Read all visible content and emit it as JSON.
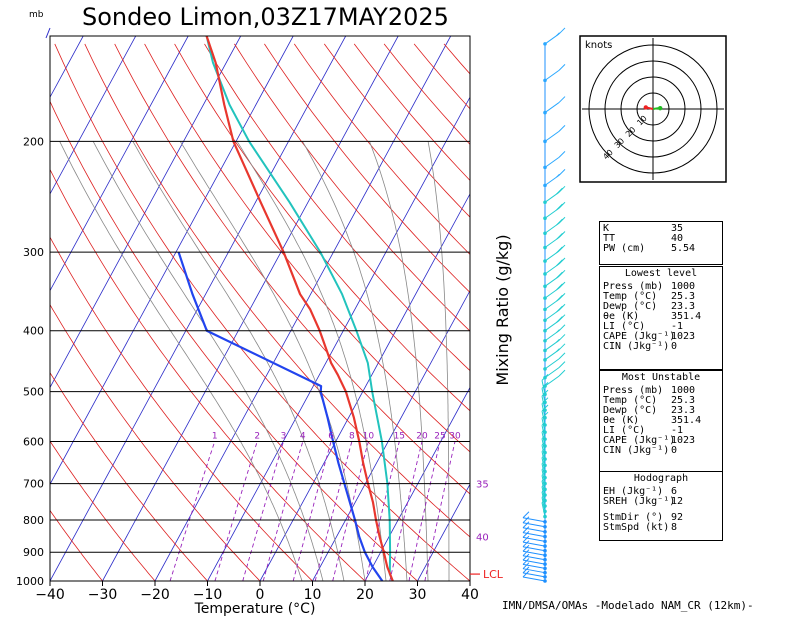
{
  "title": "Sondeo Limon,03Z17MAY2025",
  "pressure_unit": "mb",
  "xlabel": "Temperature (°C)",
  "mixing_ratio_label": "Mixing Ratio (g/kg)",
  "credit": "IMN/DMSA/OMAs -Modelado NAM_CR (12km)-",
  "hodograph": {
    "unit_label": "knots",
    "ring_labels": [
      "10",
      "20",
      "30",
      "40"
    ],
    "trace": [
      [
        0.0,
        0.0
      ],
      [
        3.0,
        0.5
      ],
      [
        4.5,
        0.5
      ],
      [
        -4.5,
        1.0
      ]
    ]
  },
  "indices_box": {
    "rows": [
      {
        "k": "K",
        "v": "35"
      },
      {
        "k": "TT",
        "v": "40"
      },
      {
        "k": "PW (cm)",
        "v": "5.54"
      }
    ]
  },
  "lowest_level": {
    "header": "Lowest level",
    "rows": [
      {
        "k": "Press (mb)",
        "v": "1000"
      },
      {
        "k": "Temp (°C)",
        "v": "25.3"
      },
      {
        "k": "Dewp (°C)",
        "v": "23.3"
      },
      {
        "k": "θe (K)",
        "v": "351.4"
      },
      {
        "k": "LI (°C)",
        "v": "-1"
      },
      {
        "k": "CAPE (Jkg⁻¹)",
        "v": "1023"
      },
      {
        "k": "CIN (Jkg⁻¹)",
        "v": "0"
      }
    ]
  },
  "most_unstable": {
    "header": "Most Unstable",
    "rows": [
      {
        "k": "Press (mb)",
        "v": "1000"
      },
      {
        "k": "Temp (°C)",
        "v": "25.3"
      },
      {
        "k": "Dewp (°C)",
        "v": "23.3"
      },
      {
        "k": "θe (K)",
        "v": "351.4"
      },
      {
        "k": "LI (°C)",
        "v": "-1"
      },
      {
        "k": "CAPE (Jkg⁻¹)",
        "v": "1023"
      },
      {
        "k": "CIN (Jkg⁻¹)",
        "v": "0"
      }
    ]
  },
  "hodo_box": {
    "header": "Hodograph",
    "rows": [
      {
        "k": "EH (Jkg⁻¹)",
        "v": "6"
      },
      {
        "k": "SREH (Jkg⁻¹)",
        "v": "12"
      }
    ],
    "rows2": [
      {
        "k": "StmDir (°)",
        "v": "92"
      },
      {
        "k": "StmSpd (kt)",
        "v": "8"
      }
    ]
  },
  "chart_data": {
    "type": "skew-t",
    "title": "Sondeo Limon,03Z17MAY2025",
    "xlabel": "Temperature (°C)",
    "x_ticks": [
      -40,
      -30,
      -20,
      -10,
      0,
      10,
      20,
      30,
      40
    ],
    "p_ticks": [
      1000,
      900,
      800,
      700,
      600,
      500,
      400,
      300,
      200
    ],
    "p_range": [
      1000,
      136
    ],
    "t_range": [
      -40,
      40
    ],
    "skew_deg_per_decade": 65,
    "mixing_ratio_lines": [
      1,
      2,
      3,
      4,
      6,
      8,
      10,
      15,
      20,
      25,
      30
    ],
    "side_labels": [
      {
        "text": "35",
        "p": 700
      },
      {
        "text": "40",
        "p": 850
      },
      {
        "text": "LCL",
        "p": 975
      }
    ],
    "temperature": [
      [
        1000,
        25.3
      ],
      [
        950,
        22.8
      ],
      [
        900,
        20.6
      ],
      [
        850,
        18.2
      ],
      [
        800,
        15.8
      ],
      [
        750,
        13.4
      ],
      [
        700,
        10.5
      ],
      [
        650,
        7.5
      ],
      [
        600,
        4.5
      ],
      [
        550,
        1.0
      ],
      [
        500,
        -3.2
      ],
      [
        470,
        -6.5
      ],
      [
        450,
        -9.0
      ],
      [
        400,
        -14.5
      ],
      [
        370,
        -18.5
      ],
      [
        350,
        -22.0
      ],
      [
        300,
        -29.5
      ],
      [
        250,
        -39.0
      ],
      [
        200,
        -50.5
      ],
      [
        175,
        -56.0
      ],
      [
        150,
        -62.0
      ],
      [
        136,
        -66.5
      ]
    ],
    "dewpoint": [
      [
        1000,
        23.3
      ],
      [
        950,
        20.0
      ],
      [
        900,
        17.0
      ],
      [
        850,
        14.3
      ],
      [
        800,
        11.8
      ],
      [
        750,
        9.0
      ],
      [
        700,
        6.0
      ],
      [
        650,
        2.8
      ],
      [
        600,
        -0.5
      ],
      [
        550,
        -4.0
      ],
      [
        500,
        -8.0
      ],
      [
        490,
        -8.5
      ],
      [
        400,
        -36.0
      ],
      [
        350,
        -42.5
      ],
      [
        300,
        -49.5
      ]
    ],
    "parcel": [
      [
        1000,
        25.3
      ],
      [
        975,
        24.0
      ],
      [
        900,
        21.8
      ],
      [
        800,
        18.4
      ],
      [
        700,
        14.2
      ],
      [
        600,
        8.8
      ],
      [
        500,
        1.8
      ],
      [
        450,
        -2.0
      ],
      [
        400,
        -7.5
      ],
      [
        350,
        -14.0
      ],
      [
        300,
        -22.5
      ],
      [
        250,
        -33.5
      ],
      [
        200,
        -47.5
      ],
      [
        175,
        -55.0
      ],
      [
        150,
        -62.5
      ],
      [
        136,
        -66.5
      ]
    ],
    "wind_levels": [
      {
        "p": 1000,
        "spd": 10
      },
      {
        "p": 985,
        "spd": 10
      },
      {
        "p": 970,
        "spd": 10
      },
      {
        "p": 955,
        "spd": 10
      },
      {
        "p": 940,
        "spd": 10
      },
      {
        "p": 925,
        "spd": 10
      },
      {
        "p": 910,
        "spd": 10
      },
      {
        "p": 895,
        "spd": 10
      },
      {
        "p": 880,
        "spd": 10
      },
      {
        "p": 865,
        "spd": 10
      },
      {
        "p": 850,
        "spd": 10
      },
      {
        "p": 835,
        "spd": 10
      },
      {
        "p": 820,
        "spd": 10
      },
      {
        "p": 805,
        "spd": 10
      },
      {
        "p": 790,
        "spd": 5
      },
      {
        "p": 775,
        "spd": 5
      },
      {
        "p": 760,
        "spd": 5
      },
      {
        "p": 745,
        "spd": 5
      },
      {
        "p": 730,
        "spd": 5
      },
      {
        "p": 715,
        "spd": 5
      },
      {
        "p": 700,
        "spd": 5
      },
      {
        "p": 685,
        "spd": 5
      },
      {
        "p": 670,
        "spd": 5
      },
      {
        "p": 655,
        "spd": 5
      },
      {
        "p": 640,
        "spd": 5
      },
      {
        "p": 625,
        "spd": 5
      },
      {
        "p": 610,
        "spd": 5
      },
      {
        "p": 595,
        "spd": 5
      },
      {
        "p": 580,
        "spd": 10
      },
      {
        "p": 565,
        "spd": 10
      },
      {
        "p": 550,
        "spd": 10
      },
      {
        "p": 535,
        "spd": 10
      },
      {
        "p": 520,
        "spd": 10
      },
      {
        "p": 505,
        "spd": 10
      },
      {
        "p": 490,
        "spd": 10
      },
      {
        "p": 475,
        "spd": 10
      },
      {
        "p": 460,
        "spd": 10
      },
      {
        "p": 445,
        "spd": 15
      },
      {
        "p": 430,
        "spd": 15
      },
      {
        "p": 415,
        "spd": 15
      },
      {
        "p": 400,
        "spd": 20
      },
      {
        "p": 385,
        "spd": 20
      },
      {
        "p": 370,
        "spd": 20
      },
      {
        "p": 355,
        "spd": 20
      },
      {
        "p": 340,
        "spd": 20
      },
      {
        "p": 325,
        "spd": 20
      },
      {
        "p": 310,
        "spd": 20
      },
      {
        "p": 295,
        "spd": 20
      },
      {
        "p": 280,
        "spd": 20
      },
      {
        "p": 265,
        "spd": 20
      },
      {
        "p": 250,
        "spd": 20
      },
      {
        "p": 235,
        "spd": 15
      },
      {
        "p": 220,
        "spd": 10
      },
      {
        "p": 200,
        "spd": 10
      },
      {
        "p": 180,
        "spd": 10
      },
      {
        "p": 160,
        "spd": 10
      },
      {
        "p": 140,
        "spd": 15
      }
    ],
    "colors": {
      "temperature": "#e8372e",
      "dewpoint": "#2244ee",
      "parcel": "#22c3bd",
      "isotherm": "#2a2ac8",
      "dry_adiabat": "#dd2020",
      "moist_adiabat": "#888888",
      "mixing_ratio": "#9922bb",
      "wind_calm": "#1e90ff",
      "wind_mid": "#22cdd0",
      "wind_high": "#2aa8ff",
      "hodo_red": "#ee2222",
      "hodo_green": "#22bb22"
    }
  }
}
